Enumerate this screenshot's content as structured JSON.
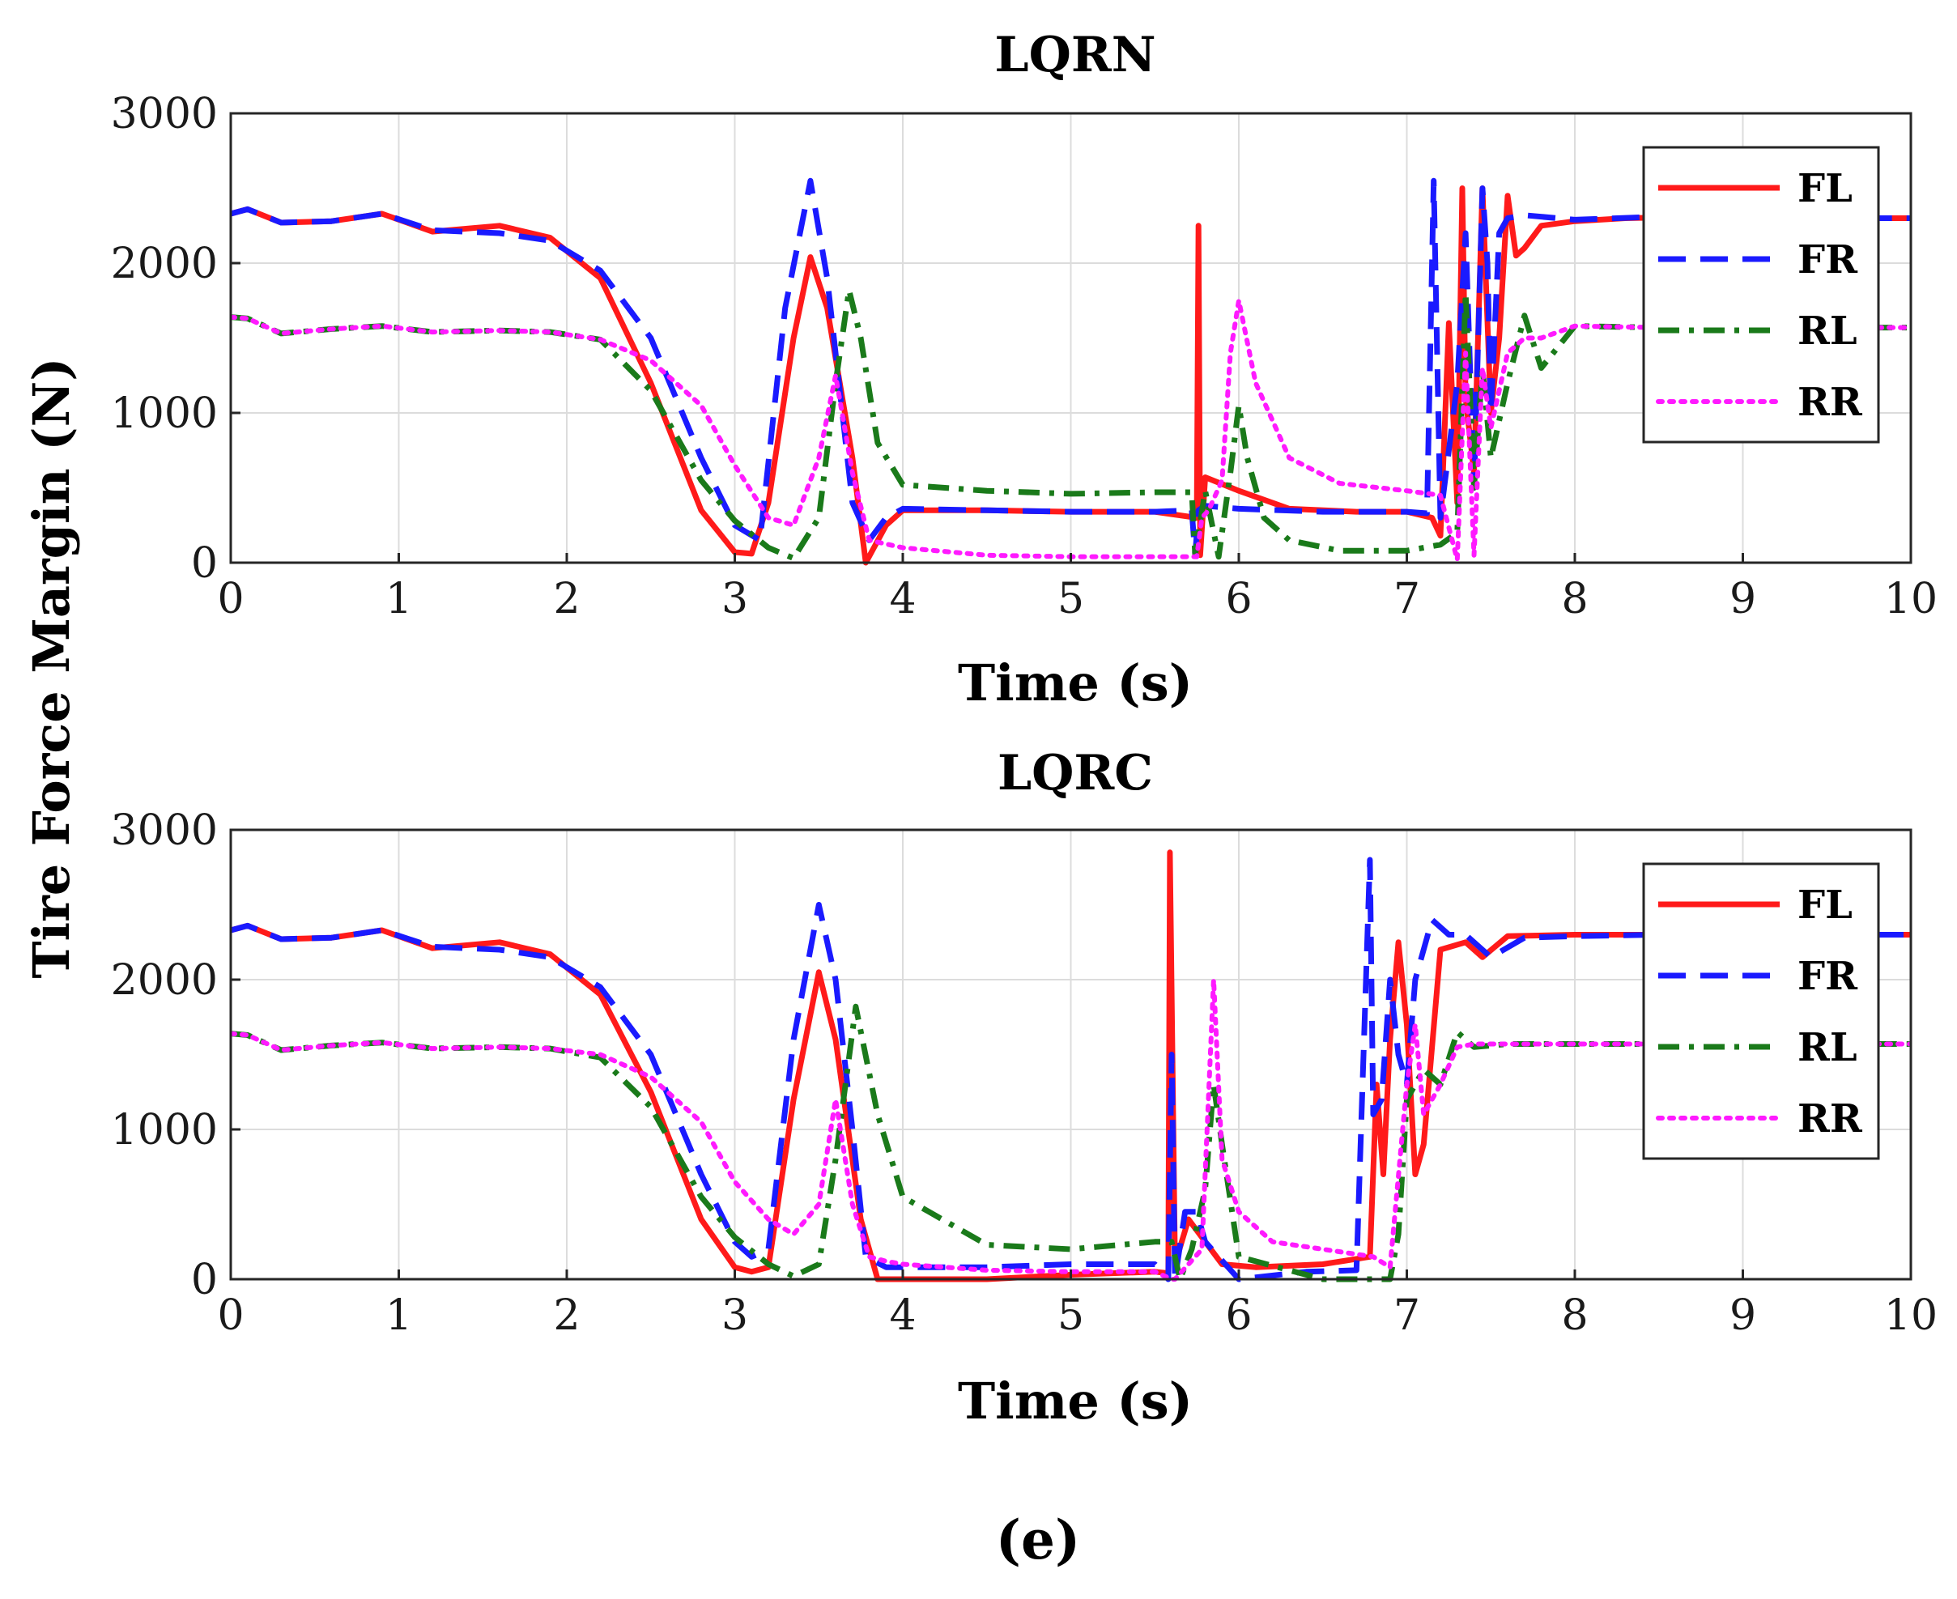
{
  "figure": {
    "ylabel": "Tire Force Margin (N)",
    "caption": "(e)"
  },
  "chart_data": [
    {
      "type": "line",
      "title": "LQRN",
      "xlabel": "Time (s)",
      "ylabel": "Tire Force Margin (N)",
      "xlim": [
        0,
        10
      ],
      "ylim": [
        0,
        3000
      ],
      "xticks": [
        "0",
        "1",
        "2",
        "3",
        "4",
        "5",
        "6",
        "7",
        "8",
        "9",
        "10"
      ],
      "yticks": [
        "0",
        "1000",
        "2000",
        "3000"
      ],
      "grid": true,
      "legend_position": "top-right",
      "series": [
        {
          "name": "FL",
          "color": "#ff1a1a",
          "style": "solid",
          "x": [
            0,
            0.1,
            0.3,
            0.6,
            0.9,
            1.2,
            1.6,
            1.9,
            2.2,
            2.5,
            2.8,
            3.0,
            3.1,
            3.2,
            3.35,
            3.45,
            3.55,
            3.7,
            3.78,
            3.9,
            4.0,
            4.5,
            5.0,
            5.5,
            5.75,
            5.76,
            5.77,
            5.8,
            6.0,
            6.3,
            6.7,
            7.0,
            7.15,
            7.2,
            7.25,
            7.3,
            7.33,
            7.35,
            7.4,
            7.45,
            7.5,
            7.55,
            7.6,
            7.65,
            7.7,
            7.8,
            8.0,
            8.3,
            8.8,
            9.3,
            10
          ],
          "y": [
            2330,
            2360,
            2270,
            2280,
            2330,
            2210,
            2250,
            2170,
            1900,
            1200,
            350,
            70,
            60,
            400,
            1500,
            2040,
            1700,
            700,
            0,
            250,
            350,
            350,
            340,
            340,
            300,
            2250,
            50,
            570,
            480,
            360,
            340,
            340,
            300,
            180,
            1600,
            400,
            2500,
            1100,
            600,
            2500,
            1000,
            1500,
            2450,
            2050,
            2100,
            2250,
            2280,
            2300,
            2310,
            2300,
            2300
          ]
        },
        {
          "name": "FR",
          "color": "#1a1aff",
          "style": "dashed",
          "x": [
            0,
            0.1,
            0.3,
            0.6,
            0.9,
            1.2,
            1.6,
            1.9,
            2.2,
            2.5,
            2.8,
            3.0,
            3.15,
            3.3,
            3.45,
            3.55,
            3.7,
            3.8,
            3.9,
            4.0,
            4.5,
            5.0,
            5.5,
            5.72,
            5.74,
            5.76,
            5.8,
            6.0,
            6.5,
            7.0,
            7.12,
            7.16,
            7.2,
            7.3,
            7.35,
            7.4,
            7.45,
            7.48,
            7.5,
            7.55,
            7.6,
            7.7,
            8.0,
            8.5,
            9.0,
            10
          ],
          "y": [
            2330,
            2360,
            2270,
            2280,
            2330,
            2220,
            2200,
            2150,
            1950,
            1500,
            700,
            250,
            150,
            1700,
            2550,
            1900,
            400,
            150,
            300,
            360,
            350,
            340,
            340,
            350,
            50,
            350,
            380,
            360,
            340,
            340,
            330,
            2550,
            300,
            1200,
            2200,
            500,
            2500,
            2000,
            1000,
            2200,
            2300,
            2320,
            2290,
            2310,
            2300,
            2300
          ]
        },
        {
          "name": "RL",
          "color": "#1a7a1a",
          "style": "dashdot",
          "x": [
            0,
            0.1,
            0.3,
            0.6,
            0.9,
            1.2,
            1.6,
            1.9,
            2.2,
            2.5,
            2.8,
            3.0,
            3.2,
            3.35,
            3.5,
            3.6,
            3.68,
            3.75,
            3.85,
            4.0,
            4.5,
            5.0,
            5.5,
            5.72,
            5.74,
            5.76,
            5.8,
            5.88,
            5.95,
            6.0,
            6.05,
            6.15,
            6.3,
            6.6,
            7.0,
            7.2,
            7.3,
            7.35,
            7.4,
            7.45,
            7.5,
            7.6,
            7.7,
            7.8,
            8.0,
            8.5,
            9.0,
            10
          ],
          "y": [
            1640,
            1630,
            1530,
            1560,
            1580,
            1540,
            1550,
            1540,
            1490,
            1150,
            550,
            280,
            100,
            30,
            300,
            1200,
            1820,
            1500,
            800,
            520,
            480,
            460,
            470,
            470,
            50,
            200,
            480,
            40,
            600,
            1050,
            700,
            300,
            150,
            80,
            80,
            120,
            200,
            1800,
            500,
            1300,
            700,
            1200,
            1650,
            1300,
            1580,
            1570,
            1570,
            1570
          ]
        },
        {
          "name": "RR",
          "color": "#ff1aff",
          "style": "dotted",
          "x": [
            0,
            0.1,
            0.3,
            0.6,
            0.9,
            1.2,
            1.6,
            1.9,
            2.2,
            2.5,
            2.8,
            3.0,
            3.2,
            3.35,
            3.5,
            3.6,
            3.7,
            3.8,
            4.0,
            4.5,
            5.0,
            5.5,
            5.75,
            5.78,
            5.82,
            5.9,
            5.95,
            6.0,
            6.1,
            6.3,
            6.6,
            7.0,
            7.2,
            7.3,
            7.35,
            7.4,
            7.45,
            7.5,
            7.6,
            7.7,
            7.8,
            8.0,
            8.5,
            9.0,
            10
          ],
          "y": [
            1640,
            1630,
            1530,
            1560,
            1580,
            1540,
            1550,
            1540,
            1490,
            1350,
            1050,
            650,
            300,
            250,
            700,
            1250,
            600,
            150,
            100,
            50,
            40,
            40,
            40,
            300,
            350,
            550,
            1400,
            1750,
            1200,
            700,
            530,
            480,
            450,
            20,
            1400,
            50,
            1300,
            900,
            1400,
            1500,
            1500,
            1580,
            1570,
            1570,
            1570
          ]
        }
      ]
    },
    {
      "type": "line",
      "title": "LQRC",
      "xlabel": "Time (s)",
      "ylabel": "Tire Force Margin (N)",
      "xlim": [
        0,
        10
      ],
      "ylim": [
        0,
        3000
      ],
      "xticks": [
        "0",
        "1",
        "2",
        "3",
        "4",
        "5",
        "6",
        "7",
        "8",
        "9",
        "10"
      ],
      "yticks": [
        "0",
        "1000",
        "2000",
        "3000"
      ],
      "grid": true,
      "legend_position": "top-right",
      "series": [
        {
          "name": "FL",
          "color": "#ff1a1a",
          "style": "solid",
          "x": [
            0,
            0.1,
            0.3,
            0.6,
            0.9,
            1.2,
            1.6,
            1.9,
            2.2,
            2.5,
            2.8,
            3.0,
            3.1,
            3.2,
            3.35,
            3.5,
            3.6,
            3.75,
            3.85,
            4.0,
            4.5,
            5.0,
            5.5,
            5.58,
            5.59,
            5.62,
            5.7,
            5.9,
            6.1,
            6.5,
            6.78,
            6.82,
            6.86,
            6.9,
            6.95,
            7.0,
            7.05,
            7.1,
            7.2,
            7.35,
            7.45,
            7.6,
            8.0,
            8.5,
            9.0,
            10
          ],
          "y": [
            2330,
            2360,
            2270,
            2280,
            2330,
            2210,
            2250,
            2170,
            1900,
            1250,
            400,
            80,
            50,
            80,
            1200,
            2050,
            1600,
            400,
            0,
            0,
            0,
            30,
            50,
            40,
            2850,
            100,
            400,
            100,
            80,
            100,
            150,
            1300,
            700,
            1600,
            2250,
            1700,
            700,
            900,
            2200,
            2250,
            2150,
            2290,
            2300,
            2300,
            2300,
            2300
          ]
        },
        {
          "name": "FR",
          "color": "#1a1aff",
          "style": "dashed",
          "x": [
            0,
            0.1,
            0.3,
            0.6,
            0.9,
            1.2,
            1.6,
            1.9,
            2.2,
            2.5,
            2.8,
            3.0,
            3.1,
            3.2,
            3.35,
            3.5,
            3.6,
            3.7,
            3.78,
            3.9,
            4.0,
            4.5,
            5.0,
            5.5,
            5.58,
            5.6,
            5.62,
            5.68,
            5.75,
            5.8,
            6.0,
            6.4,
            6.7,
            6.78,
            6.8,
            6.85,
            6.9,
            6.95,
            7.0,
            7.05,
            7.15,
            7.25,
            7.35,
            7.5,
            7.7,
            8.0,
            8.5,
            9.0,
            10
          ],
          "y": [
            2330,
            2360,
            2270,
            2280,
            2330,
            2220,
            2200,
            2150,
            1950,
            1500,
            700,
            250,
            150,
            200,
            1600,
            2500,
            2000,
            1000,
            150,
            80,
            80,
            80,
            100,
            100,
            0,
            1500,
            0,
            450,
            450,
            250,
            0,
            50,
            60,
            2800,
            1100,
            1200,
            2000,
            1500,
            1300,
            2000,
            2400,
            2300,
            2300,
            2150,
            2280,
            2290,
            2300,
            2300,
            2300
          ]
        },
        {
          "name": "RL",
          "color": "#1a7a1a",
          "style": "dashdot",
          "x": [
            0,
            0.1,
            0.3,
            0.6,
            0.9,
            1.2,
            1.6,
            1.9,
            2.2,
            2.5,
            2.8,
            3.0,
            3.2,
            3.35,
            3.5,
            3.6,
            3.72,
            3.85,
            4.0,
            4.5,
            5.0,
            5.5,
            5.6,
            5.65,
            5.72,
            5.8,
            5.85,
            5.9,
            6.0,
            6.5,
            6.9,
            6.95,
            7.0,
            7.1,
            7.2,
            7.3,
            7.4,
            7.6,
            8.0,
            8.5,
            9.0,
            10
          ],
          "y": [
            1640,
            1630,
            1530,
            1560,
            1580,
            1540,
            1550,
            1540,
            1480,
            1150,
            550,
            280,
            100,
            20,
            100,
            800,
            1820,
            1100,
            550,
            230,
            200,
            250,
            250,
            0,
            200,
            600,
            1300,
            900,
            150,
            0,
            0,
            300,
            1200,
            1400,
            1300,
            1650,
            1550,
            1570,
            1570,
            1570,
            1570,
            1570
          ]
        },
        {
          "name": "RR",
          "color": "#ff1aff",
          "style": "dotted",
          "x": [
            0,
            0.1,
            0.3,
            0.6,
            0.9,
            1.2,
            1.6,
            1.9,
            2.2,
            2.5,
            2.8,
            3.0,
            3.2,
            3.35,
            3.5,
            3.6,
            3.7,
            3.8,
            3.9,
            4.0,
            4.5,
            5.0,
            5.5,
            5.6,
            5.62,
            5.7,
            5.78,
            5.85,
            5.9,
            6.0,
            6.2,
            6.5,
            6.8,
            6.9,
            7.0,
            7.05,
            7.1,
            7.2,
            7.3,
            7.4,
            7.6,
            8.0,
            8.5,
            9.0,
            10
          ],
          "y": [
            1640,
            1630,
            1530,
            1560,
            1580,
            1540,
            1550,
            1540,
            1500,
            1350,
            1050,
            650,
            400,
            300,
            500,
            1200,
            500,
            150,
            120,
            100,
            60,
            50,
            50,
            0,
            0,
            100,
            200,
            2000,
            800,
            450,
            250,
            200,
            150,
            80,
            1300,
            1700,
            1100,
            1300,
            1550,
            1570,
            1570,
            1570,
            1570,
            1570,
            1570
          ]
        }
      ]
    }
  ]
}
